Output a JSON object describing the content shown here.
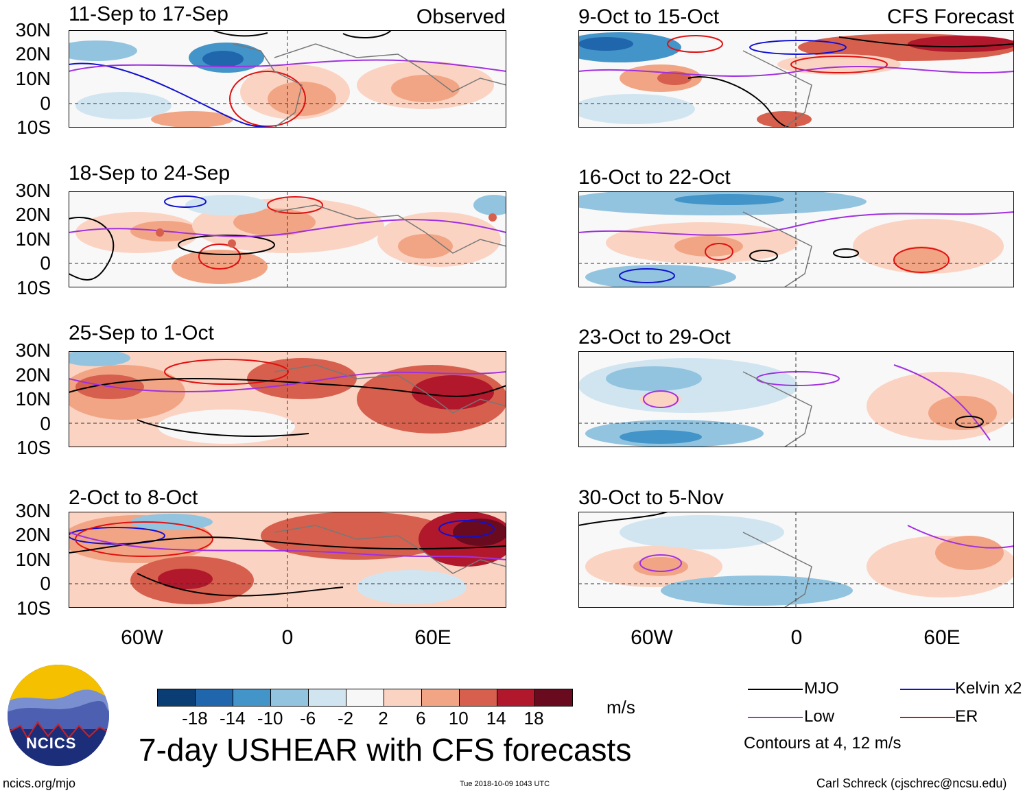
{
  "left_column_tag": "Observed",
  "right_column_tag": "CFS Forecast",
  "latitude_labels": [
    "30N",
    "20N",
    "10N",
    "0",
    "10S"
  ],
  "longitude_labels": [
    "60W",
    "0",
    "60E"
  ],
  "panels": [
    {
      "title": "11-Sep to 17-Sep",
      "source": "observed"
    },
    {
      "title": "18-Sep to 24-Sep",
      "source": "observed"
    },
    {
      "title": "25-Sep to 1-Oct",
      "source": "observed"
    },
    {
      "title": "2-Oct to 8-Oct",
      "source": "observed"
    },
    {
      "title": "9-Oct to 15-Oct",
      "source": "forecast"
    },
    {
      "title": "16-Oct to 22-Oct",
      "source": "forecast"
    },
    {
      "title": "23-Oct to 29-Oct",
      "source": "forecast"
    },
    {
      "title": "30-Oct to 5-Nov",
      "source": "forecast"
    }
  ],
  "colorbar": {
    "ticks": [
      "-18",
      "-14",
      "-10",
      "-6",
      "-2",
      "2",
      "6",
      "10",
      "14",
      "18"
    ],
    "colors": [
      "#0b3d75",
      "#1f66ad",
      "#4394c8",
      "#92c4e0",
      "#d1e5f1",
      "#f7f7f7",
      "#fbd3c2",
      "#f2a584",
      "#d6604d",
      "#b2182b",
      "#6a0a1f"
    ],
    "units": "m/s"
  },
  "legend": {
    "items": [
      {
        "label": "MJO",
        "color": "#000000"
      },
      {
        "label": "Kelvin x2",
        "color": "#1010d0"
      },
      {
        "label": "Low",
        "color": "#a030e0"
      },
      {
        "label": "ER",
        "color": "#e01010"
      }
    ],
    "note": "Contours at 4, 12 m/s"
  },
  "logo_text": "NCICS",
  "main_title": "7-day USHEAR with CFS forecasts",
  "footer": {
    "left": "ncics.org/mjo",
    "center": "Tue 2018-10-09 1043 UTC",
    "right": "Carl Schreck (cjschrec@ncsu.edu)"
  }
}
